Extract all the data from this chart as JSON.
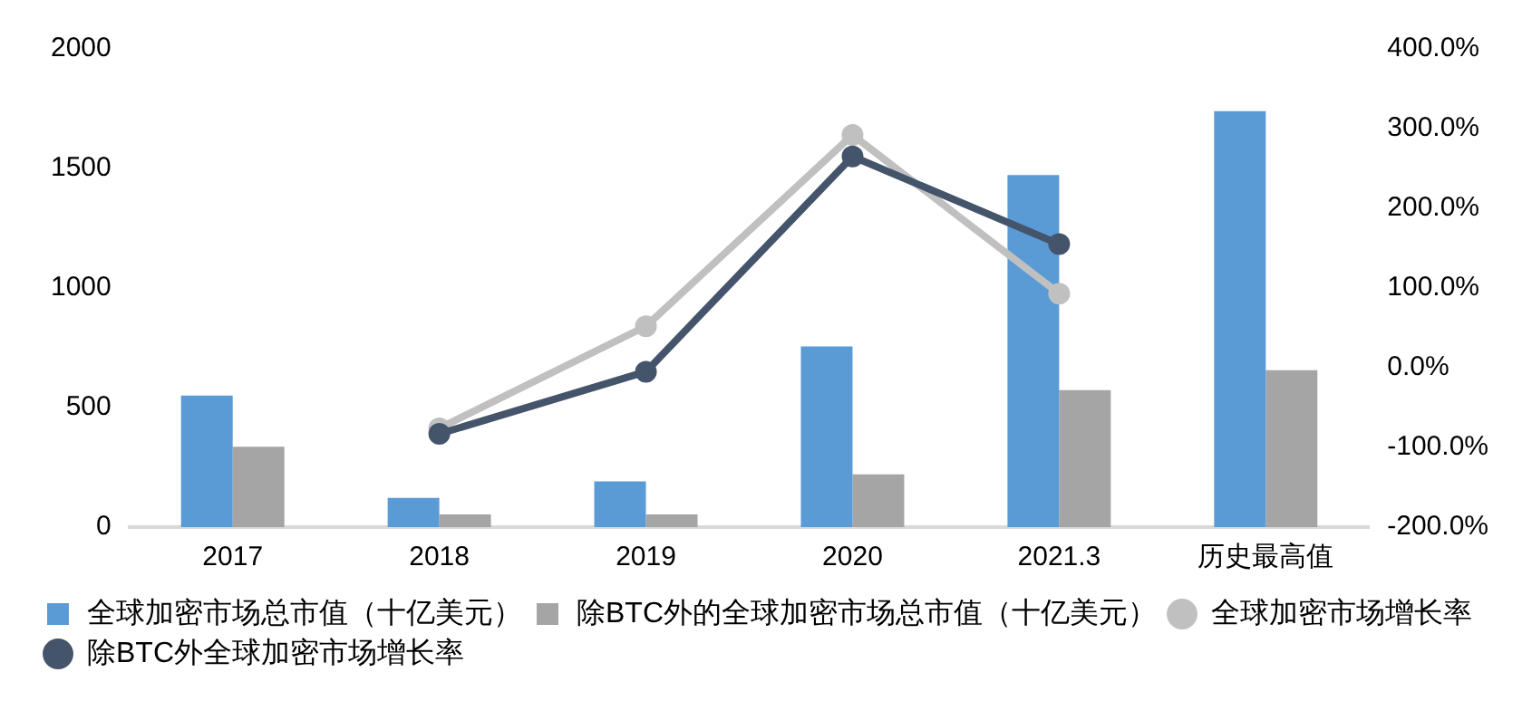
{
  "chart_data": {
    "type": "bar",
    "categories": [
      "2017",
      "2018",
      "2019",
      "2020",
      "2021.3",
      "历史最高值"
    ],
    "series": [
      {
        "name": "全球加密市场总市值（十亿美元）",
        "color": "#5b9bd5",
        "values": [
          550,
          122,
          191,
          756,
          1473,
          1740
        ]
      },
      {
        "name": "除BTC外的全球加密市场总市值（十亿美元）",
        "color": "#a5a5a5",
        "values": [
          336,
          53,
          53,
          221,
          573,
          656
        ]
      },
      {
        "name": "全球加密市场增长率",
        "type": "line",
        "axis": "y2",
        "color": "#c0c0c0",
        "values": [
          null,
          -76,
          52,
          292,
          93,
          null
        ]
      },
      {
        "name": "除BTC外全球加密市场增长率",
        "type": "line",
        "axis": "y2",
        "color": "#44546a",
        "values": [
          null,
          -83,
          -5,
          265,
          155,
          null
        ]
      }
    ],
    "ylim": [
      0,
      2000
    ],
    "yticks": [
      0,
      500,
      1000,
      1500,
      2000
    ],
    "y2lim": [
      -200,
      400
    ],
    "y2ticks": [
      {
        "value": -200,
        "label": "-200.0%"
      },
      {
        "value": -100,
        "label": "-100.0%"
      },
      {
        "value": 0,
        "label": "0.0%"
      },
      {
        "value": 100,
        "label": "100.0%"
      },
      {
        "value": 200,
        "label": "200.0%"
      },
      {
        "value": 300,
        "label": "300.0%"
      },
      {
        "value": 400,
        "label": "400.0%"
      }
    ],
    "marker": "circle",
    "grid": false,
    "legend": "bottom"
  }
}
